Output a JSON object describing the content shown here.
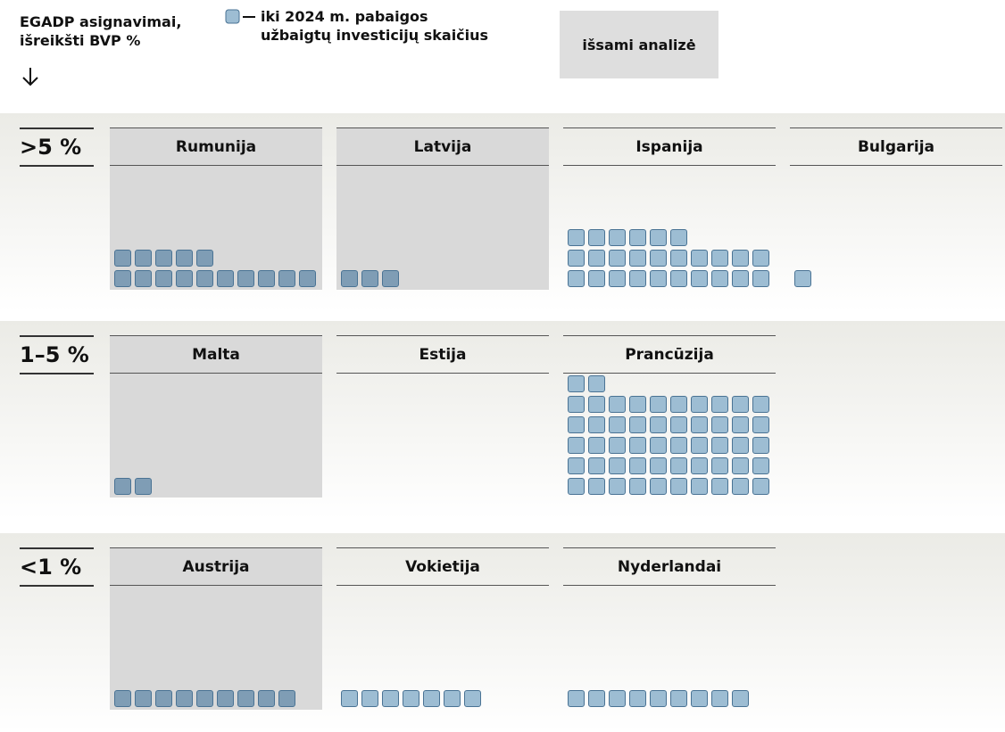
{
  "header": {
    "lines": [
      "EGADP asignavimai,",
      "išreikšti BVP %"
    ]
  },
  "legend": {
    "lines": [
      "iki 2024 m. pabaigos",
      "užbaigtų investicijų skaičius"
    ]
  },
  "button": "išsami analizė",
  "groups": [
    {
      "label": ">5 %",
      "countries": [
        {
          "name": "Rumunija",
          "count": 15,
          "highlighted": true
        },
        {
          "name": "Latvija",
          "count": 3,
          "highlighted": true
        },
        {
          "name": "Ispanija",
          "count": 26,
          "highlighted": false
        },
        {
          "name": "Bulgarija",
          "count": 1,
          "highlighted": false
        }
      ]
    },
    {
      "label": "1–5 %",
      "countries": [
        {
          "name": "Malta",
          "count": 2,
          "highlighted": true
        },
        {
          "name": "Estija",
          "count": 0,
          "highlighted": false
        },
        {
          "name": "Prancūzija",
          "count": 52,
          "highlighted": false
        }
      ]
    },
    {
      "label": "<1 %",
      "countries": [
        {
          "name": "Austrija",
          "count": 9,
          "highlighted": true
        },
        {
          "name": "Vokietija",
          "count": 7,
          "highlighted": false
        },
        {
          "name": "Nyderlandai",
          "count": 9,
          "highlighted": false
        }
      ]
    }
  ]
}
